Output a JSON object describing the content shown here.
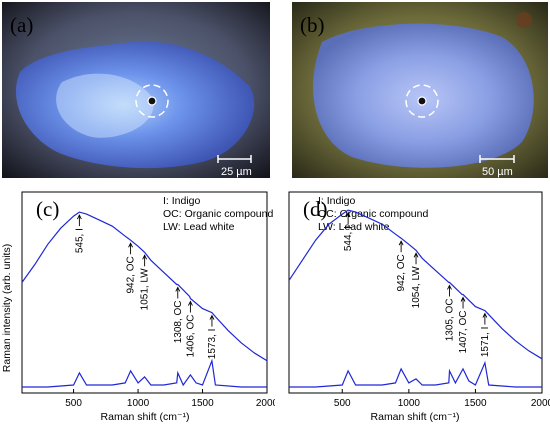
{
  "micrographs": [
    {
      "panel_label": "(a)",
      "scale_bar": "25 µm"
    },
    {
      "panel_label": "(b)",
      "scale_bar": "50 µm"
    }
  ],
  "chart_data": [
    {
      "type": "line",
      "panel_label": "(c)",
      "xlabel": "Raman shift (cm⁻¹)",
      "ylabel": "Raman intensity (arb. units)",
      "xlim": [
        100,
        2000
      ],
      "xticks": [
        "500",
        "1000",
        "1500",
        "2000"
      ],
      "legend": [
        "I: Indigo",
        "OC: Organic compound",
        "LW: Lead white"
      ],
      "annotations": [
        {
          "x": 545,
          "label": "545, I"
        },
        {
          "x": 942,
          "label": "942, OC"
        },
        {
          "x": 1051,
          "label": "1051, LW"
        },
        {
          "x": 1308,
          "label": "1308, OC"
        },
        {
          "x": 1406,
          "label": "1406, OC"
        },
        {
          "x": 1573,
          "label": "1573, I"
        }
      ],
      "series": [
        {
          "x": [
            100,
            200,
            300,
            400,
            500,
            545,
            600,
            700,
            800,
            900,
            942,
            1000,
            1051,
            1100,
            1200,
            1300,
            1308,
            1400,
            1406,
            1500,
            1573,
            1600,
            1700,
            1800,
            1900,
            2000
          ],
          "y": [
            0.55,
            0.64,
            0.74,
            0.82,
            0.88,
            0.9,
            0.89,
            0.86,
            0.83,
            0.78,
            0.76,
            0.73,
            0.7,
            0.66,
            0.6,
            0.54,
            0.54,
            0.48,
            0.47,
            0.42,
            0.4,
            0.38,
            0.31,
            0.25,
            0.2,
            0.16
          ]
        },
        {
          "x": [
            100,
            300,
            500,
            545,
            600,
            800,
            900,
            942,
            1000,
            1051,
            1100,
            1200,
            1300,
            1308,
            1350,
            1406,
            1450,
            1500,
            1573,
            1600,
            1800,
            2000
          ],
          "y": [
            0.03,
            0.03,
            0.04,
            0.1,
            0.04,
            0.04,
            0.05,
            0.11,
            0.05,
            0.08,
            0.04,
            0.04,
            0.05,
            0.1,
            0.04,
            0.09,
            0.05,
            0.04,
            0.16,
            0.04,
            0.03,
            0.03
          ]
        }
      ]
    },
    {
      "type": "line",
      "panel_label": "(d)",
      "xlabel": "Raman shift (cm⁻¹)",
      "ylabel": "",
      "xlim": [
        100,
        2000
      ],
      "xticks": [
        "500",
        "1000",
        "1500",
        "2000"
      ],
      "legend": [
        "I: Indigo",
        "OC: Organic compound",
        "LW: Lead white"
      ],
      "annotations": [
        {
          "x": 544,
          "label": "544, I"
        },
        {
          "x": 942,
          "label": "942, OC"
        },
        {
          "x": 1054,
          "label": "1054, LW"
        },
        {
          "x": 1305,
          "label": "1305, OC"
        },
        {
          "x": 1407,
          "label": "1407, OC"
        },
        {
          "x": 1571,
          "label": "1571, I"
        }
      ],
      "series": [
        {
          "x": [
            100,
            200,
            300,
            400,
            500,
            544,
            600,
            700,
            800,
            900,
            942,
            1000,
            1054,
            1100,
            1200,
            1300,
            1305,
            1400,
            1407,
            1500,
            1571,
            1600,
            1700,
            1800,
            1900,
            2000
          ],
          "y": [
            0.56,
            0.66,
            0.76,
            0.84,
            0.89,
            0.91,
            0.9,
            0.87,
            0.84,
            0.79,
            0.77,
            0.74,
            0.71,
            0.67,
            0.61,
            0.55,
            0.55,
            0.49,
            0.49,
            0.43,
            0.41,
            0.39,
            0.32,
            0.26,
            0.21,
            0.17
          ]
        },
        {
          "x": [
            100,
            300,
            500,
            544,
            600,
            800,
            900,
            942,
            1000,
            1054,
            1100,
            1200,
            1300,
            1305,
            1350,
            1407,
            1450,
            1500,
            1571,
            1600,
            1800,
            2000
          ],
          "y": [
            0.03,
            0.03,
            0.04,
            0.11,
            0.04,
            0.04,
            0.05,
            0.12,
            0.05,
            0.07,
            0.04,
            0.04,
            0.05,
            0.11,
            0.05,
            0.12,
            0.06,
            0.04,
            0.15,
            0.04,
            0.03,
            0.03
          ]
        }
      ]
    }
  ]
}
